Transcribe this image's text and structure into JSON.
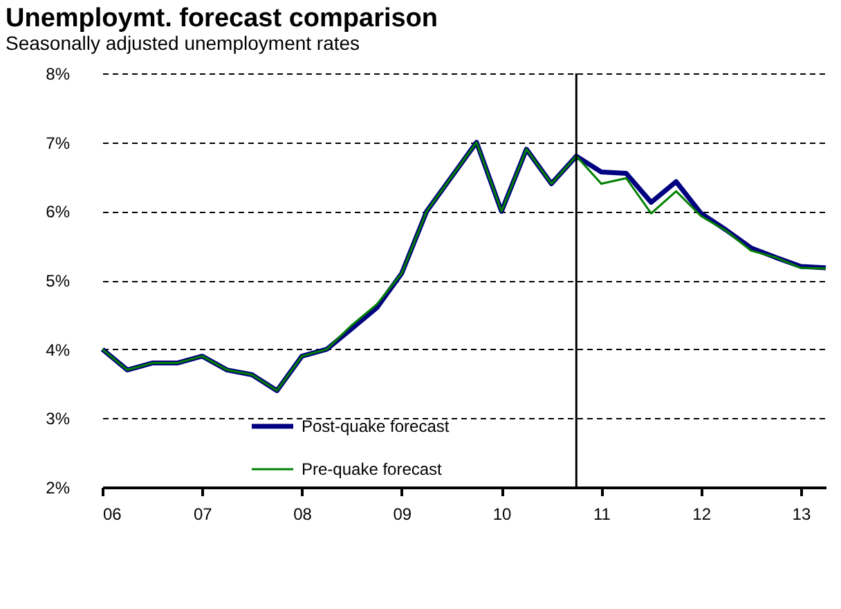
{
  "chart_data": {
    "type": "line",
    "title": "Unemploymt. forecast comparison",
    "subtitle": "Seasonally adjusted unemployment rates",
    "x": [
      2006,
      2006.25,
      2006.5,
      2006.75,
      2007,
      2007.25,
      2007.5,
      2007.75,
      2008,
      2008.25,
      2008.5,
      2008.75,
      2009,
      2009.25,
      2009.5,
      2009.75,
      2010,
      2010.25,
      2010.5,
      2010.75,
      2011,
      2011.25,
      2011.5,
      2011.75,
      2012,
      2012.25,
      2012.5,
      2012.75,
      2013,
      2013.25
    ],
    "series": [
      {
        "name": "Post-quake forecast",
        "color": "#000080",
        "values": [
          4.0,
          3.7,
          3.8,
          3.8,
          3.9,
          3.7,
          3.63,
          3.4,
          3.9,
          4.0,
          4.3,
          4.6,
          5.1,
          6.0,
          6.5,
          7.0,
          6.0,
          6.9,
          6.4,
          6.8,
          6.57,
          6.55,
          6.13,
          6.43,
          5.97,
          5.73,
          5.47,
          5.33,
          5.2,
          5.18
        ]
      },
      {
        "name": "Pre-quake forecast",
        "color": "#008000",
        "values": [
          4.0,
          3.7,
          3.8,
          3.8,
          3.9,
          3.7,
          3.63,
          3.4,
          3.9,
          4.0,
          4.35,
          4.65,
          5.1,
          6.0,
          6.5,
          7.0,
          6.0,
          6.9,
          6.4,
          6.8,
          6.4,
          6.48,
          5.97,
          6.29,
          5.93,
          5.72,
          5.43,
          5.33,
          5.18,
          5.17
        ]
      }
    ],
    "xlim": [
      2006,
      2013.25
    ],
    "xticks": [
      {
        "value": 2006,
        "label": "06"
      },
      {
        "value": 2007,
        "label": "07"
      },
      {
        "value": 2008,
        "label": "08"
      },
      {
        "value": 2009,
        "label": "09"
      },
      {
        "value": 2010,
        "label": "10"
      },
      {
        "value": 2011,
        "label": "11"
      },
      {
        "value": 2012,
        "label": "12"
      },
      {
        "value": 2013,
        "label": "13"
      }
    ],
    "ylim": [
      2,
      8
    ],
    "yticks": [
      {
        "value": 2,
        "label": "2%"
      },
      {
        "value": 3,
        "label": "3%"
      },
      {
        "value": 4,
        "label": "4%"
      },
      {
        "value": 5,
        "label": "5%"
      },
      {
        "value": 6,
        "label": "6%"
      },
      {
        "value": 7,
        "label": "7%"
      },
      {
        "value": 8,
        "label": "8%"
      }
    ],
    "ref_lines": [
      {
        "axis": "x",
        "value": 2010.75,
        "color": "#000000"
      }
    ],
    "grid": "y",
    "legend": "bottom left"
  }
}
